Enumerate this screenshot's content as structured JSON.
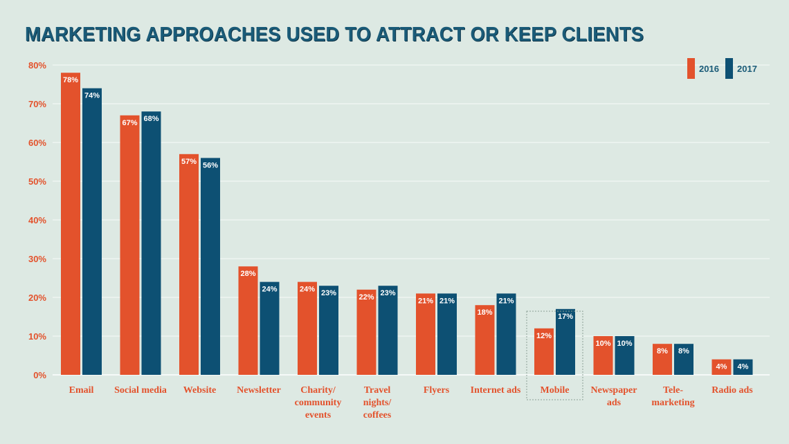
{
  "chart_data": {
    "type": "bar",
    "title": "MARKETING APPROACHES USED TO ATTRACT OR KEEP CLIENTS",
    "categories": [
      [
        "Email"
      ],
      [
        "Social media"
      ],
      [
        "Website"
      ],
      [
        "Newsletter"
      ],
      [
        "Charity/",
        "community",
        "events"
      ],
      [
        "Travel",
        "nights/",
        "coffees"
      ],
      [
        "Flyers"
      ],
      [
        "Internet ads"
      ],
      [
        "Mobile"
      ],
      [
        "Newspaper",
        "ads"
      ],
      [
        "Tele-",
        "marketing"
      ],
      [
        "Radio ads"
      ]
    ],
    "series": [
      {
        "name": "2016",
        "color": "#e3522c",
        "values": [
          78,
          67,
          57,
          28,
          24,
          22,
          21,
          18,
          12,
          10,
          8,
          4
        ]
      },
      {
        "name": "2017",
        "color": "#0d5073",
        "values": [
          74,
          68,
          56,
          24,
          23,
          23,
          21,
          21,
          17,
          10,
          8,
          4
        ]
      }
    ],
    "y_ticks": [
      "0%",
      "10%",
      "20%",
      "30%",
      "40%",
      "50%",
      "60%",
      "70%",
      "80%"
    ],
    "ylim": [
      0,
      80
    ],
    "highlighted_category": "Mobile",
    "legend_position": "top-right",
    "colors": {
      "background": "#dde9e3",
      "title": "#1a5b78",
      "axis_text": "#e3522c",
      "grid": "#f3f7f5"
    }
  }
}
